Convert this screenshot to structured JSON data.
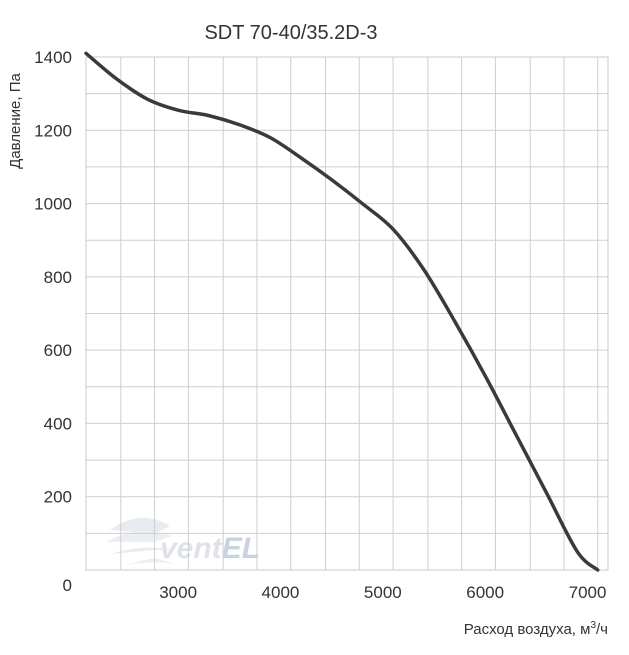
{
  "chart_data": {
    "type": "line",
    "title": "SDT 70-40/35.2D-3",
    "xlabel": "Расход воздуха, м",
    "xlabel_sup": "3",
    "xlabel_tail": "/ч",
    "ylabel": "Давление, Па",
    "xlim": [
      2100,
      7200
    ],
    "ylim": [
      0,
      1400
    ],
    "x_ticks": [
      3000,
      4000,
      5000,
      6000,
      7000
    ],
    "y_ticks": [
      0,
      200,
      400,
      600,
      800,
      1000,
      1200,
      1400
    ],
    "x_gridlines": [
      2100,
      2440,
      2770,
      3100,
      3440,
      3770,
      4100,
      4440,
      4770,
      5100,
      5440,
      5770,
      6100,
      6440,
      6770,
      7100
    ],
    "y_gridlines": [
      0,
      100,
      200,
      300,
      400,
      500,
      600,
      700,
      800,
      900,
      1000,
      1100,
      1200,
      1300,
      1400
    ],
    "grid": true,
    "series": [
      {
        "color": "#3a3a3a",
        "x": [
          2100,
          2400,
          2700,
          3000,
          3300,
          3600,
          3900,
          4200,
          4500,
          4800,
          5100,
          5400,
          5700,
          6000,
          6300,
          6600,
          6900,
          7100
        ],
        "y": [
          1410,
          1340,
          1285,
          1255,
          1240,
          1215,
          1180,
          1125,
          1065,
          1000,
          930,
          820,
          680,
          530,
          370,
          210,
          50,
          0
        ]
      }
    ]
  },
  "watermark": {
    "text_main": "vent",
    "text_accent": "EL"
  }
}
